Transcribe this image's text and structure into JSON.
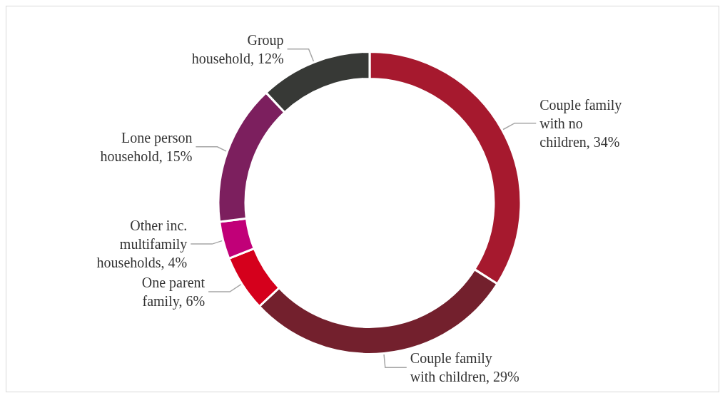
{
  "chart_data": {
    "type": "donut",
    "categories": [
      "Couple family with no children",
      "Couple family with children",
      "One parent family",
      "Other inc. multifamily households",
      "Lone person household",
      "Group household"
    ],
    "values": [
      34,
      29,
      6,
      4,
      15,
      12
    ],
    "value_labels": [
      "34%",
      "29%",
      "6%",
      "4%",
      "15%",
      "12%"
    ],
    "colors": [
      "#a6192e",
      "#73202d",
      "#d5001c",
      "#c10078",
      "#7c1f5e",
      "#373936"
    ],
    "legend": false
  }
}
